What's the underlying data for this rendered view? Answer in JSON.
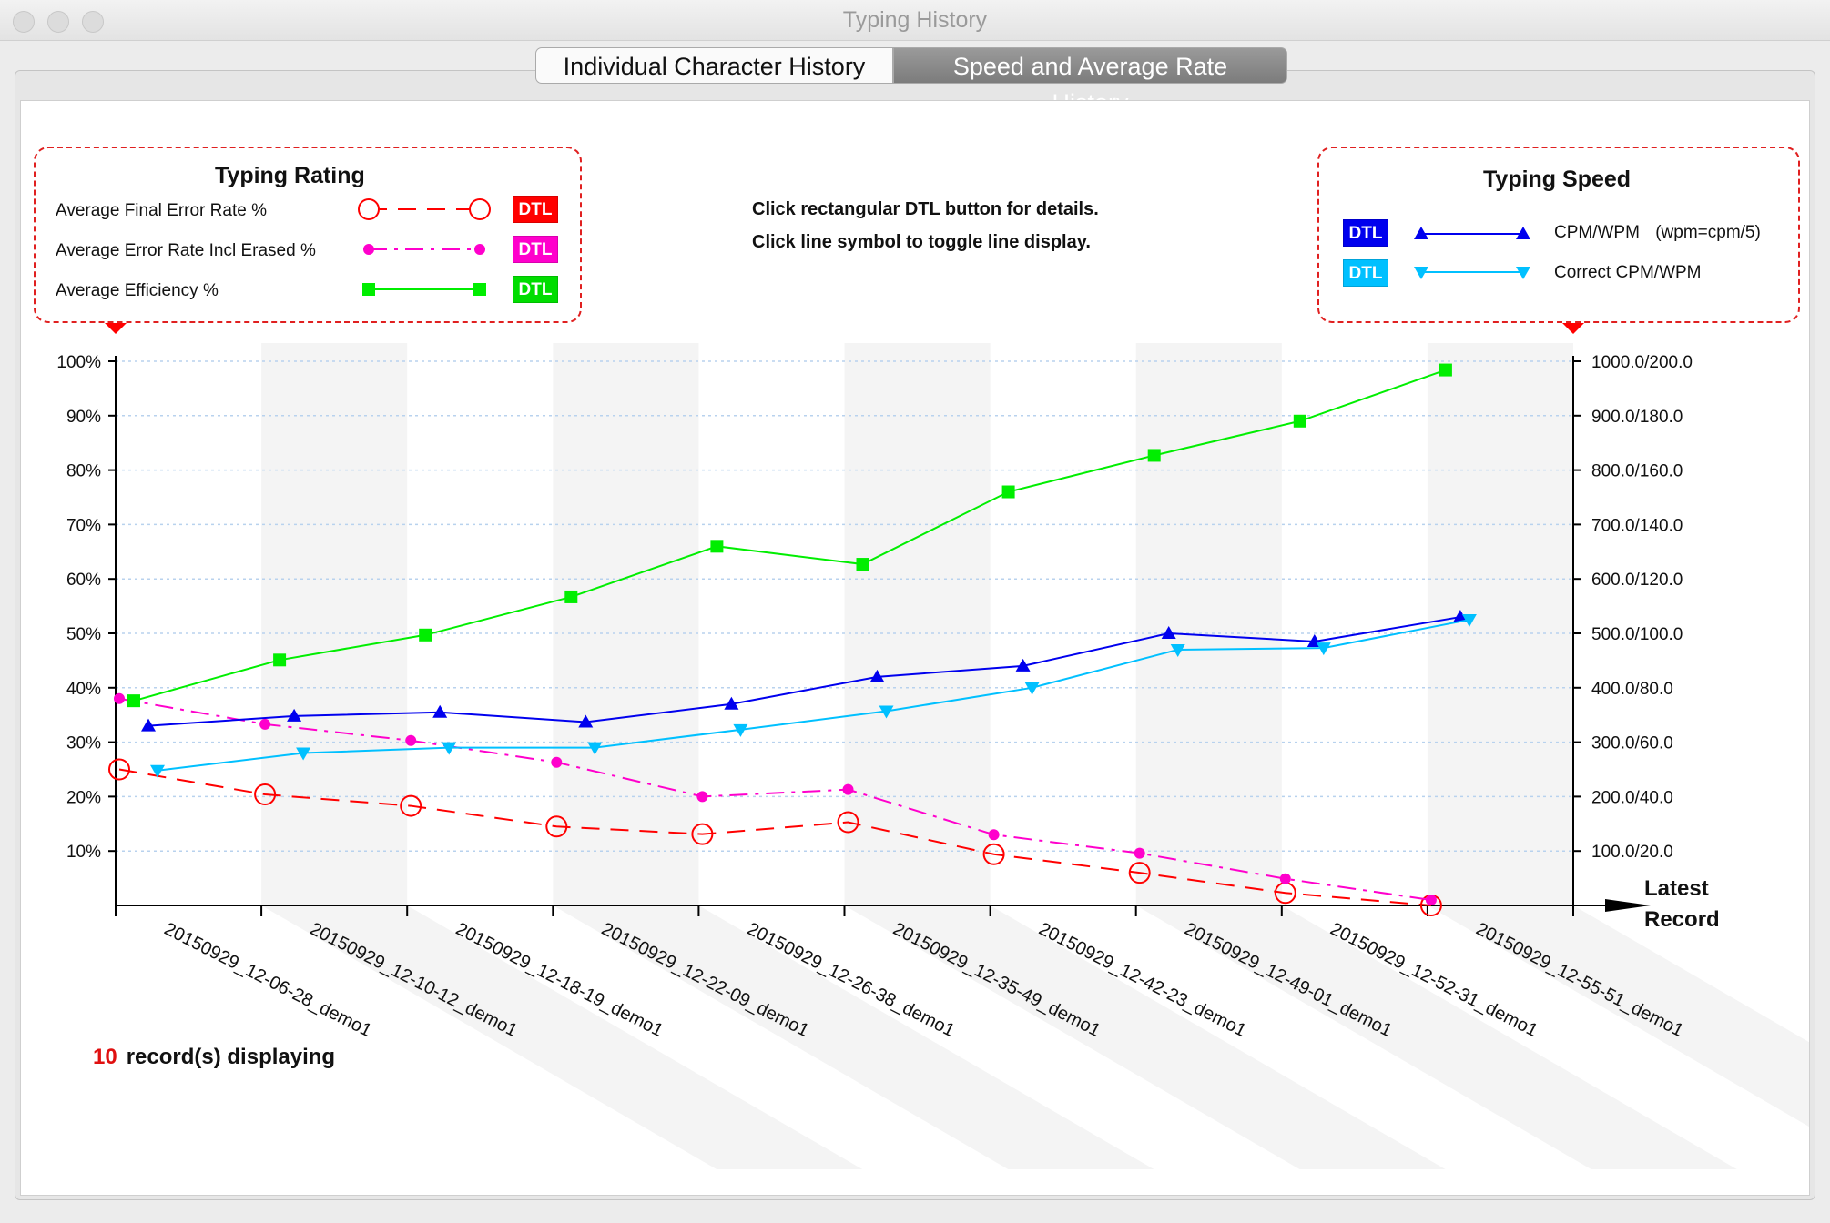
{
  "window": {
    "title": "Typing History"
  },
  "tabs": [
    {
      "label": "Individual Character History",
      "active": false
    },
    {
      "label": "Speed and Average Rate History",
      "active": true
    }
  ],
  "instructions": {
    "line1": "Click rectangular DTL button for details.",
    "line2": "Click line symbol to toggle line display."
  },
  "rating_legend": {
    "title": "Typing Rating",
    "items": [
      {
        "label": "Average Final Error Rate %",
        "color": "#ff0000",
        "button": "DTL",
        "symbol": "open-circle-icon"
      },
      {
        "label": "Average Error Rate Incl Erased %",
        "color": "#ff00cc",
        "button": "DTL",
        "symbol": "dot-icon"
      },
      {
        "label": "Average Efficiency %",
        "color": "#00ee00",
        "button": "DTL",
        "symbol": "square-icon"
      }
    ]
  },
  "speed_legend": {
    "title": "Typing Speed",
    "items": [
      {
        "label": "CPM/WPM",
        "note": "(wpm=cpm/5)",
        "color": "#0000ee",
        "button": "DTL",
        "symbol": "triangle-up-icon"
      },
      {
        "label": "Correct CPM/WPM",
        "note": "",
        "color": "#00c0ff",
        "button": "DTL",
        "symbol": "triangle-down-icon"
      }
    ]
  },
  "x_axis_title": "Latest Record",
  "status": {
    "count": "10",
    "text": "record(s) displaying"
  },
  "chart_data": {
    "type": "line",
    "categories": [
      "20150929_12-06-28_demo1",
      "20150929_12-10-12_demo1",
      "20150929_12-18-19_demo1",
      "20150929_12-22-09_demo1",
      "20150929_12-26-38_demo1",
      "20150929_12-35-49_demo1",
      "20150929_12-42-23_demo1",
      "20150929_12-49-01_demo1",
      "20150929_12-52-31_demo1",
      "20150929_12-55-51_demo1"
    ],
    "left_axis": {
      "ylim": [
        0,
        100
      ],
      "ticks": [
        "10%",
        "20%",
        "30%",
        "40%",
        "50%",
        "60%",
        "70%",
        "80%",
        "90%",
        "100%"
      ]
    },
    "right_axis": {
      "ylim": [
        0,
        1000
      ],
      "ticks": [
        "100.0/20.0",
        "200.0/40.0",
        "300.0/60.0",
        "400.0/80.0",
        "500.0/100.0",
        "600.0/120.0",
        "700.0/140.0",
        "800.0/160.0",
        "900.0/180.0",
        "1000.0/200.0"
      ]
    },
    "grid": true,
    "series": [
      {
        "name": "Average Final Error Rate %",
        "axis": "left",
        "color": "#ff0000",
        "marker": "open-circle",
        "dash": "20,12",
        "values": [
          25,
          20.4,
          18.3,
          14.5,
          13.1,
          15.3,
          9.4,
          6,
          2.3,
          0
        ]
      },
      {
        "name": "Average Error Rate Incl Erased %",
        "axis": "left",
        "color": "#ff00cc",
        "marker": "dot",
        "dash": "20,8,4,8",
        "values": [
          38,
          33.3,
          30.3,
          26.3,
          20,
          21.3,
          13,
          9.6,
          4.9,
          1
        ]
      },
      {
        "name": "Average Efficiency %",
        "axis": "left",
        "color": "#00ee00",
        "marker": "square",
        "dash": "",
        "values": [
          37.6,
          45.1,
          49.7,
          56.7,
          66,
          62.7,
          76,
          82.7,
          89,
          98.4
        ]
      },
      {
        "name": "CPM/WPM",
        "axis": "right",
        "color": "#0000ee",
        "marker": "triangle-up",
        "dash": "",
        "values": [
          330,
          348,
          355,
          337,
          370,
          420,
          440,
          500,
          485,
          530
        ]
      },
      {
        "name": "Correct CPM/WPM",
        "axis": "right",
        "color": "#00c0ff",
        "marker": "triangle-down",
        "dash": "",
        "values": [
          248,
          280,
          290,
          290,
          323,
          357,
          400,
          470,
          473,
          525
        ]
      }
    ]
  }
}
